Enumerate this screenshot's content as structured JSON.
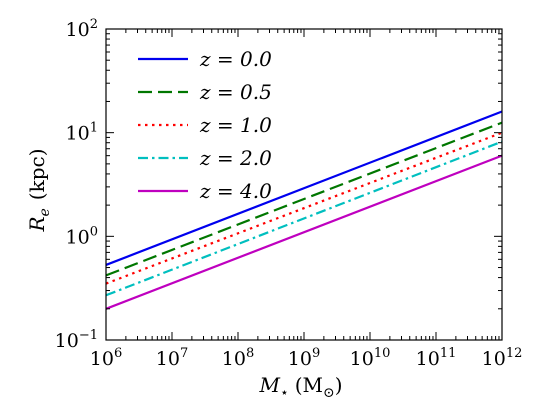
{
  "chart_data": {
    "type": "line",
    "title": "",
    "xlabel": {
      "symbol": "M",
      "subscript": "⋆",
      "unit": "(M",
      "unit_sub": "⊙",
      "unit_close": ")"
    },
    "ylabel": {
      "symbol": "R",
      "subscript": "e",
      "unit": "(kpc)"
    },
    "x_scale": "log",
    "y_scale": "log",
    "xlim": [
      1000000,
      1000000000000
    ],
    "ylim": [
      0.1,
      100
    ],
    "x_ticks": [
      {
        "value": 1000000,
        "base": "10",
        "exp": "6"
      },
      {
        "value": 10000000,
        "base": "10",
        "exp": "7"
      },
      {
        "value": 100000000,
        "base": "10",
        "exp": "8"
      },
      {
        "value": 1000000000,
        "base": "10",
        "exp": "9"
      },
      {
        "value": 10000000000,
        "base": "10",
        "exp": "10"
      },
      {
        "value": 100000000000,
        "base": "10",
        "exp": "11"
      },
      {
        "value": 1000000000000,
        "base": "10",
        "exp": "12"
      }
    ],
    "y_ticks": [
      {
        "value": 0.1,
        "base": "10",
        "exp": "−1"
      },
      {
        "value": 1,
        "base": "10",
        "exp": "0"
      },
      {
        "value": 10,
        "base": "10",
        "exp": "1"
      },
      {
        "value": 100,
        "base": "10",
        "exp": "2"
      }
    ],
    "grid": false,
    "legend_placement": "top-left",
    "series": [
      {
        "name": "z = 0.0",
        "color": "#0000ee",
        "dash": "solid",
        "x": [
          1000000,
          1000000000000
        ],
        "y": [
          0.53,
          16.0
        ]
      },
      {
        "name": "z = 0.5",
        "color": "#007700",
        "dash": "dashed",
        "x": [
          1000000,
          1000000000000
        ],
        "y": [
          0.42,
          12.5
        ]
      },
      {
        "name": "z = 1.0",
        "color": "#ff0000",
        "dash": "dotted",
        "x": [
          1000000,
          1000000000000
        ],
        "y": [
          0.35,
          10.0
        ]
      },
      {
        "name": "z = 2.0",
        "color": "#00bfbf",
        "dash": "dashdot",
        "x": [
          1000000,
          1000000000000
        ],
        "y": [
          0.27,
          8.2
        ]
      },
      {
        "name": "z = 4.0",
        "color": "#bf00bf",
        "dash": "solid",
        "x": [
          1000000,
          1000000000000
        ],
        "y": [
          0.2,
          6.0
        ]
      }
    ]
  }
}
